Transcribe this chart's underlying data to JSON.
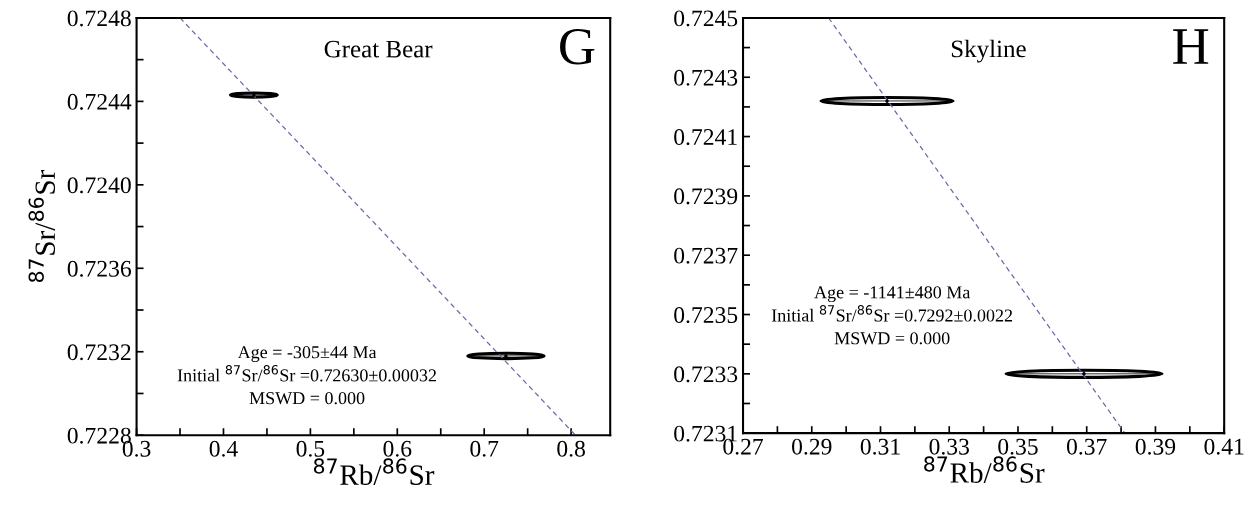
{
  "chart_data": [
    {
      "type": "scatter",
      "title": "Great Bear",
      "xlabel": "$^{87}$Rb/$^{86}$Sr",
      "ylabel": "$^{87}$Sr/$^{86}$Sr",
      "annotations": [
        "G",
        "Age = -305±44 Ma\nInitial $^{87}$Sr/$^{86}$Sr =0.72630±0.00032\nMSWD = 0.000"
      ],
      "xlim": [
        0.3,
        0.845
      ],
      "ylim": [
        0.7228,
        0.7248
      ],
      "xticks": [
        0.3,
        {
          "value": 0.35,
          "label": null
        },
        0.4,
        {
          "value": 0.45,
          "label": null
        },
        0.5,
        {
          "value": 0.55,
          "label": null
        },
        0.6,
        {
          "value": 0.65,
          "label": null
        },
        0.7,
        {
          "value": 0.75,
          "label": null
        },
        0.8
      ],
      "yticks": [
        0.7228,
        {
          "value": 0.723,
          "label": null
        },
        0.7232,
        {
          "value": 0.7234,
          "label": null
        },
        0.7236,
        {
          "value": 0.7238,
          "label": null
        },
        {
          "value": 0.724,
          "label": "0.7240"
        },
        {
          "value": 0.7242,
          "label": null
        },
        0.7244,
        {
          "value": 0.7246,
          "label": null
        },
        0.7248
      ],
      "grid": false,
      "legend": false,
      "series": [
        {
          "color": "#000000",
          "x": [
            0.435,
            0.725
          ],
          "values": [
            0.72443,
            0.72318
          ],
          "xerrors": [
            0.027,
            0.044
          ],
          "errors": [
            1e-05,
            1.3e-05
          ]
        },
        {
          "type": "line",
          "color": "#6a6aa8",
          "line_style": "dashed",
          "x": [
            0.35,
            0.805
          ],
          "values": [
            0.7248,
            0.7228
          ]
        }
      ]
    },
    {
      "type": "scatter",
      "title": "Skyline",
      "xlabel": "$^{87}$Rb/$^{86}$Sr",
      "annotations": [
        "H",
        "Age = -1141±480 Ma\nInitial $^{87}$Sr/$^{86}$Sr =0.7292±0.0022\nMSWD = 0.000"
      ],
      "xlim": [
        0.27,
        0.41
      ],
      "ylim": [
        0.7231,
        0.7245
      ],
      "xticks": [
        0.27,
        {
          "value": 0.28,
          "label": null
        },
        0.29,
        {
          "value": 0.3,
          "label": null
        },
        0.31,
        {
          "value": 0.32,
          "label": null
        },
        0.33,
        {
          "value": 0.34,
          "label": null
        },
        0.35,
        {
          "value": 0.36,
          "label": null
        },
        0.37,
        {
          "value": 0.38,
          "label": null
        },
        0.39,
        {
          "value": 0.4,
          "label": null
        },
        0.41
      ],
      "yticks": [
        0.7231,
        {
          "value": 0.7232,
          "label": null
        },
        0.7233,
        {
          "value": 0.7234,
          "label": null
        },
        0.7235,
        {
          "value": 0.7236,
          "label": null
        },
        0.7237,
        {
          "value": 0.7238,
          "label": null
        },
        0.7239,
        {
          "value": 0.724,
          "label": null
        },
        0.7241,
        {
          "value": 0.7242,
          "label": null
        },
        0.7243,
        {
          "value": 0.7244,
          "label": null
        },
        0.7245
      ],
      "grid": false,
      "legend": false,
      "series": [
        {
          "color": "#000000",
          "x": [
            0.3119,
            0.3692
          ],
          "values": [
            0.72422,
            0.7233
          ],
          "xerrors": [
            0.0192,
            0.0227
          ],
          "errors": [
            1.2e-05,
            1.2e-05
          ]
        },
        {
          "type": "line",
          "color": "#6a6aa8",
          "line_style": "dashed",
          "x": [
            0.2949,
            0.3811
          ],
          "values": [
            0.7245,
            0.7231
          ]
        }
      ]
    }
  ]
}
